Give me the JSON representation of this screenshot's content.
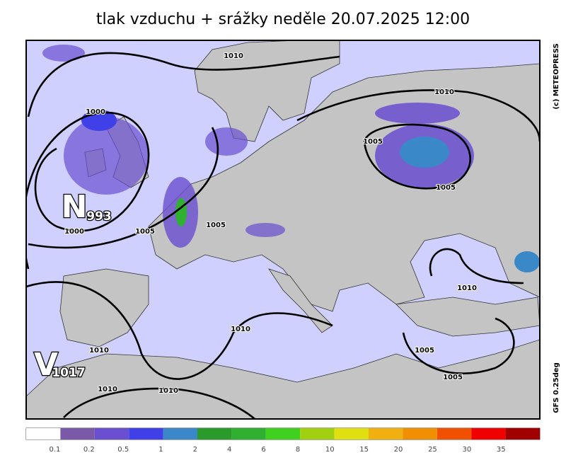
{
  "title": "tlak vzduchu + srážky  neděle 20.07.2025 12:00",
  "credit": "(c) METEOPRESS",
  "model": "GFS 0.25deg",
  "centers": [
    {
      "letter": "N",
      "value": "993"
    },
    {
      "letter": "V",
      "value": "1017"
    }
  ],
  "isobar_labels": [
    "1010",
    "1000",
    "1000",
    "1005",
    "1005",
    "1010",
    "1005",
    "1005",
    "1010",
    "1010",
    "1005",
    "1005",
    "1010",
    "1010",
    "1010"
  ],
  "legend": {
    "labels": [
      "0.1",
      "0.2",
      "0.5",
      "1",
      "2",
      "4",
      "6",
      "8",
      "10",
      "15",
      "20",
      "25",
      "30",
      "35"
    ],
    "colors": [
      "#ffffff",
      "#7a5aa8",
      "#6a4fd0",
      "#4040e8",
      "#3a88c8",
      "#2a9a2a",
      "#30b030",
      "#40d020",
      "#a0d010",
      "#e0e010",
      "#f0b010",
      "#f09000",
      "#f05000",
      "#f00000",
      "#a00000"
    ]
  }
}
